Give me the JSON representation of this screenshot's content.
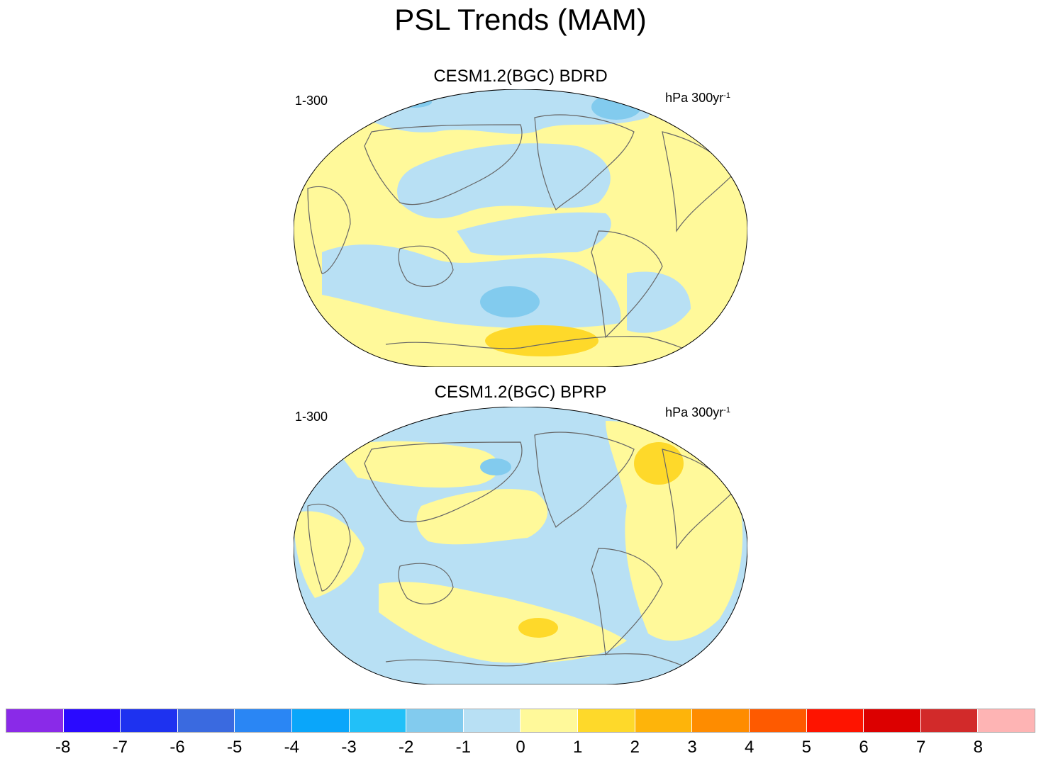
{
  "title": "PSL Trends (MAM)",
  "panels": [
    {
      "name": "CESM1.2(BGC) BDRD",
      "left_label": "1-300",
      "right_label": "hPa 300yr",
      "right_sup": "-1"
    },
    {
      "name": "CESM1.2(BGC) BPRP",
      "left_label": "1-300",
      "right_label": "hPa 300yr",
      "right_sup": "-1"
    }
  ],
  "colorbar": {
    "colors": [
      "#8a2ae8",
      "#2a0aff",
      "#1e32f0",
      "#3a6ae0",
      "#2a86f4",
      "#0aa6fa",
      "#22c0f8",
      "#82cbee",
      "#b8e0f4",
      "#fff99a",
      "#fed92a",
      "#feb40a",
      "#fe8c00",
      "#fe5a00",
      "#fe1400",
      "#dc0000",
      "#d22a2a",
      "#feb4b4"
    ],
    "labels": [
      "-8",
      "-7",
      "-6",
      "-5",
      "-4",
      "-3",
      "-2",
      "-1",
      "0",
      "1",
      "2",
      "3",
      "4",
      "5",
      "6",
      "7",
      "8"
    ]
  }
}
